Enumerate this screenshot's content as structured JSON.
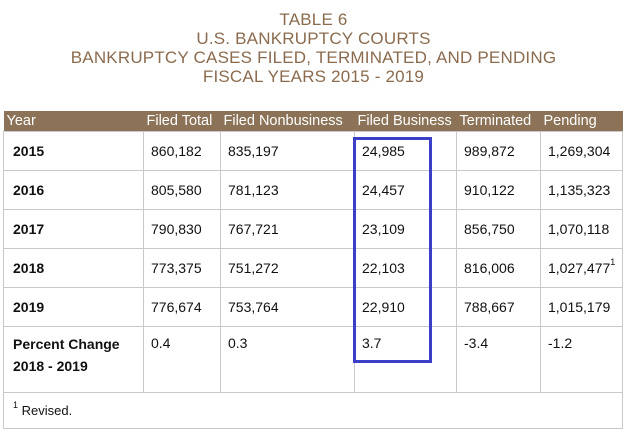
{
  "title": {
    "line1": "TABLE 6",
    "line2": "U.S. BANKRUPTCY COURTS",
    "line3": "BANKRUPTCY CASES FILED, TERMINATED, AND PENDING",
    "line4": "FISCAL YEARS 2015 - 2019"
  },
  "columns": [
    "Year",
    "Filed Total",
    "Filed Nonbusiness",
    "Filed Business",
    "Terminated",
    "Pending"
  ],
  "rows": [
    {
      "year": "2015",
      "filed_total": "860,182",
      "filed_nonbusiness": "835,197",
      "filed_business": "24,985",
      "terminated": "989,872",
      "pending": "1,269,304",
      "pending_note": ""
    },
    {
      "year": "2016",
      "filed_total": "805,580",
      "filed_nonbusiness": "781,123",
      "filed_business": "24,457",
      "terminated": "910,122",
      "pending": "1,135,323",
      "pending_note": ""
    },
    {
      "year": "2017",
      "filed_total": "790,830",
      "filed_nonbusiness": "767,721",
      "filed_business": "23,109",
      "terminated": "856,750",
      "pending": "1,070,118",
      "pending_note": ""
    },
    {
      "year": "2018",
      "filed_total": "773,375",
      "filed_nonbusiness": "751,272",
      "filed_business": "22,103",
      "terminated": "816,006",
      "pending": "1,027,477",
      "pending_note": "1"
    },
    {
      "year": "2019",
      "filed_total": "776,674",
      "filed_nonbusiness": "753,764",
      "filed_business": "22,910",
      "terminated": "788,667",
      "pending": "1,015,179",
      "pending_note": ""
    }
  ],
  "percent_change": {
    "label_line1": "Percent Change",
    "label_line2": "2018 - 2019",
    "filed_total": "0.4",
    "filed_nonbusiness": "0.3",
    "filed_business": "3.7",
    "terminated": "-3.4",
    "pending": "-1.2"
  },
  "footnote": {
    "marker": "1",
    "text": " Revised."
  },
  "highlight_color": "#3b3fc8",
  "header_color": "#8c7357",
  "title_color": "#8b6b4e"
}
